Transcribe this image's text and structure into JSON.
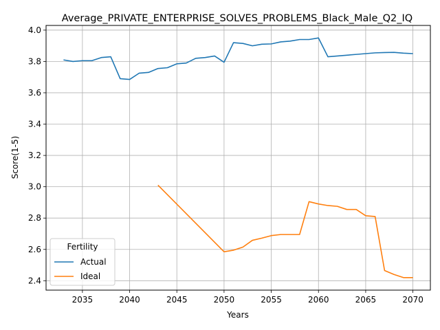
{
  "chart_data": {
    "type": "line",
    "title": "Average_PRIVATE_ENTERPRISE_SOLVES_PROBLEMS_Black_Male_Q2_IQ",
    "xlabel": "Years",
    "ylabel": "Score(1-5)",
    "xlim": [
      2031.15,
      2071.85
    ],
    "ylim": [
      2.34,
      4.03
    ],
    "xticks": [
      2035,
      2040,
      2045,
      2050,
      2055,
      2060,
      2065,
      2070
    ],
    "yticks": [
      2.4,
      2.6,
      2.8,
      3.0,
      3.2,
      3.4,
      3.6,
      3.8,
      4.0
    ],
    "grid": true,
    "legend": {
      "title": "Fertility",
      "placement": "lower-left"
    },
    "series": [
      {
        "name": "Actual",
        "color": "#1f77b4",
        "x": [
          2033,
          2034,
          2035,
          2036,
          2037,
          2038,
          2039,
          2040,
          2041,
          2042,
          2043,
          2044,
          2045,
          2046,
          2047,
          2048,
          2049,
          2050,
          2051,
          2052,
          2053,
          2054,
          2055,
          2056,
          2057,
          2058,
          2059,
          2060,
          2061,
          2062,
          2063,
          2064,
          2065,
          2066,
          2067,
          2068,
          2069,
          2070
        ],
        "y": [
          3.81,
          3.8,
          3.805,
          3.805,
          3.825,
          3.83,
          3.69,
          3.685,
          3.725,
          3.73,
          3.755,
          3.76,
          3.785,
          3.79,
          3.82,
          3.825,
          3.835,
          3.795,
          3.92,
          3.915,
          3.9,
          3.91,
          3.912,
          3.925,
          3.93,
          3.94,
          3.94,
          3.95,
          3.83,
          3.835,
          3.84,
          3.845,
          3.85,
          3.855,
          3.857,
          3.858,
          3.853,
          3.85
        ]
      },
      {
        "name": "Ideal",
        "color": "#ff7f0e",
        "x": [
          2043,
          2050,
          2051,
          2052,
          2053,
          2054,
          2055,
          2056,
          2057,
          2058,
          2059,
          2060,
          2061,
          2062,
          2063,
          2064,
          2065,
          2066,
          2067,
          2068,
          2069,
          2070
        ],
        "y": [
          3.01,
          2.585,
          2.595,
          2.615,
          2.658,
          2.672,
          2.688,
          2.695,
          2.695,
          2.695,
          2.905,
          2.89,
          2.88,
          2.875,
          2.855,
          2.855,
          2.815,
          2.81,
          2.465,
          2.44,
          2.42,
          2.42
        ]
      }
    ]
  }
}
